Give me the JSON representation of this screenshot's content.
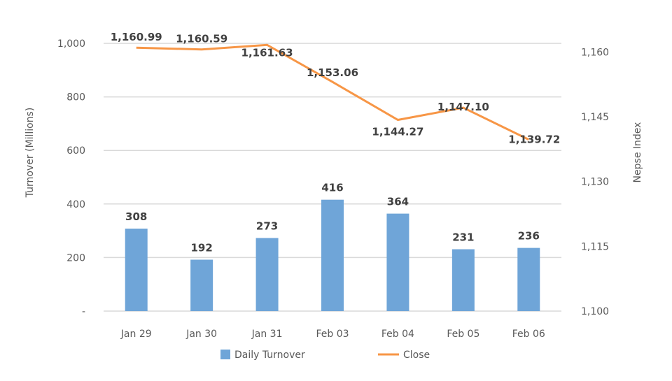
{
  "chart_data": {
    "type": "bar+line",
    "categories": [
      "Jan 29",
      "Jan 30",
      "Jan 31",
      "Feb 03",
      "Feb 04",
      "Feb 05",
      "Feb 06"
    ],
    "series": [
      {
        "name": "Daily Turnover",
        "type": "bar",
        "axis": "left",
        "color": "#6fa5d8",
        "values": [
          308,
          192,
          273,
          416,
          364,
          231,
          236
        ],
        "labels": [
          "308",
          "192",
          "273",
          "416",
          "364",
          "231",
          "236"
        ]
      },
      {
        "name": "Close",
        "type": "line",
        "axis": "right",
        "color": "#f79646",
        "values": [
          1160.99,
          1160.59,
          1161.63,
          1153.06,
          1144.27,
          1147.1,
          1139.72
        ],
        "labels": [
          "1,160.99",
          "1,160.59",
          "1,161.63",
          "1,153.06",
          "1,144.27",
          "1,147.10",
          "1,139.72"
        ]
      }
    ],
    "ylabel": "Turnover (Millions)",
    "y2label": "Nepse Index",
    "ylim": [
      0,
      1000
    ],
    "yticks": [
      "-",
      "200",
      "400",
      "600",
      "800",
      "1,000"
    ],
    "y2lim": [
      1100,
      1162
    ],
    "y2ticks": [
      "1,100",
      "1,115",
      "1,130",
      "1,145",
      "1,160"
    ],
    "grid": true,
    "legend": "bottom"
  }
}
